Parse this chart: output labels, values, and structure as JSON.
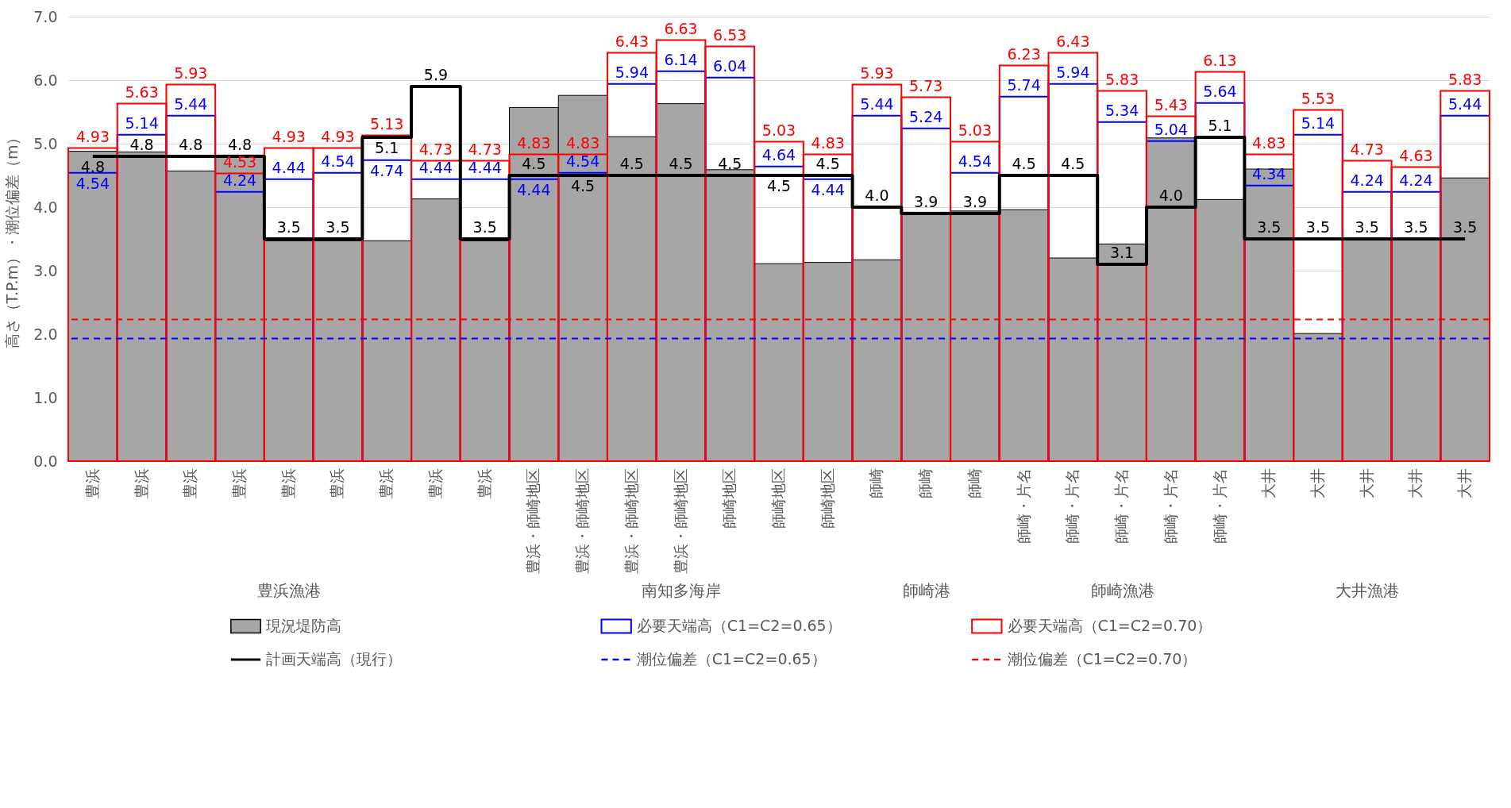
{
  "chart_data": {
    "type": "bar",
    "ylabel": "高さ（T.P.m）・潮位偏差（m）",
    "categories": [
      "豊浜",
      "豊浜",
      "豊浜",
      "豊浜",
      "豊浜",
      "豊浜",
      "豊浜",
      "豊浜",
      "豊浜",
      "豊浜・師崎地区",
      "豊浜・師崎地区",
      "豊浜・師崎地区",
      "豊浜・師崎地区",
      "師崎地区",
      "師崎地区",
      "師崎地区",
      "師崎",
      "師崎",
      "師崎",
      "師崎・片名",
      "師崎・片名",
      "師崎・片名",
      "師崎・片名",
      "師崎・片名",
      "大井",
      "大井",
      "大井",
      "大井",
      "大井"
    ],
    "series": [
      {
        "name": "現況堤防高",
        "color": "#a6a6a6",
        "values": [
          4.88,
          4.87,
          4.57,
          4.82,
          3.47,
          3.47,
          3.47,
          4.13,
          3.47,
          5.57,
          5.76,
          5.11,
          5.63,
          4.59,
          3.11,
          3.13,
          3.17,
          3.92,
          3.94,
          3.96,
          3.2,
          3.42,
          5.09,
          4.12,
          4.6,
          2.01,
          3.5,
          3.5,
          4.46
        ]
      },
      {
        "name": "必要天端高（C1=C2=0.65）",
        "color": "#0000ff",
        "values": [
          4.54,
          5.14,
          5.44,
          4.24,
          4.44,
          4.54,
          4.74,
          4.44,
          4.44,
          4.44,
          4.54,
          5.94,
          6.14,
          6.04,
          4.64,
          4.44,
          5.44,
          5.24,
          4.54,
          5.74,
          5.94,
          5.34,
          5.04,
          5.64,
          4.34,
          5.14,
          4.24,
          4.24,
          5.44
        ],
        "value_labels": [
          "4.54",
          "5.14",
          "5.44",
          "4.24",
          "4.44",
          "4.54",
          "4.74",
          "4.44",
          "4.44",
          "4.44",
          "4.54",
          "5.94",
          "6.14",
          "6.04",
          "4.64",
          "4.44",
          "5.44",
          "5.24",
          "4.54",
          "5.74",
          "5.94",
          "5.34",
          "5.04",
          "5.64",
          "4.34",
          "5.14",
          "4.24",
          "4.24",
          "5.44"
        ]
      },
      {
        "name": "必要天端高（C1=C2=0.70）",
        "color": "#ff0000",
        "values": [
          4.93,
          5.63,
          5.93,
          4.53,
          4.93,
          4.93,
          5.13,
          4.73,
          4.73,
          4.83,
          4.83,
          6.43,
          6.63,
          6.53,
          5.03,
          4.83,
          5.93,
          5.73,
          5.03,
          6.23,
          6.43,
          5.83,
          5.43,
          6.13,
          4.83,
          5.53,
          4.73,
          4.63,
          5.83
        ],
        "value_labels": [
          "4.93",
          "5.63",
          "5.93",
          "4.53",
          "4.93",
          "4.93",
          "5.13",
          "4.73",
          "4.73",
          "4.83",
          "4.83",
          "6.43",
          "6.63",
          "6.53",
          "5.03",
          "4.83",
          "5.93",
          "5.73",
          "5.03",
          "6.23",
          "6.43",
          "5.83",
          "5.43",
          "6.13",
          "4.83",
          "5.53",
          "4.73",
          "4.63",
          "5.83"
        ]
      },
      {
        "name": "計画天端高（現行）",
        "type": "step",
        "color": "#000000",
        "values": [
          4.8,
          4.8,
          4.8,
          4.8,
          3.5,
          3.5,
          5.1,
          5.9,
          3.5,
          4.5,
          4.5,
          4.5,
          4.5,
          4.5,
          4.5,
          4.5,
          4.0,
          3.9,
          3.9,
          4.5,
          4.5,
          3.1,
          4.0,
          5.1,
          3.5,
          3.5,
          3.5,
          3.5,
          3.5
        ],
        "value_labels": [
          "4.8",
          "4.8",
          "4.8",
          "4.8",
          "3.5",
          "3.5",
          "5.1",
          "5.9",
          "3.5",
          "4.5",
          "4.5",
          "4.5",
          "4.5",
          "4.5",
          "4.5",
          "4.5",
          "4.0",
          "3.9",
          "3.9",
          "4.5",
          "4.5",
          "3.1",
          "4.0",
          "5.1",
          "3.5",
          "3.5",
          "3.5",
          "3.5",
          "3.5"
        ]
      }
    ],
    "ref_lines": [
      {
        "axis": "y",
        "value": 1.93,
        "label": "潮位偏差（C1=C2=0.65）",
        "color": "#0000ff",
        "line_style": "dashed"
      },
      {
        "axis": "y",
        "value": 2.23,
        "label": "潮位偏差（C1=C2=0.70）",
        "color": "#ff0000",
        "line_style": "dashed"
      }
    ],
    "annotations": [
      "豊浜漁港",
      "南知多海岸",
      "師崎港",
      "師崎漁港",
      "大井漁港"
    ],
    "ylim": [
      0,
      7
    ],
    "yticks": [
      {
        "value": 0,
        "label": "0.0"
      },
      {
        "value": 1,
        "label": "1.0"
      },
      {
        "value": 2,
        "label": "2.0"
      },
      {
        "value": 3,
        "label": "3.0"
      },
      {
        "value": 4,
        "label": "4.0"
      },
      {
        "value": 5,
        "label": "5.0"
      },
      {
        "value": 6,
        "label": "6.0"
      },
      {
        "value": 7,
        "label": "7.0"
      }
    ],
    "grid": "y",
    "legend": "bottom"
  }
}
